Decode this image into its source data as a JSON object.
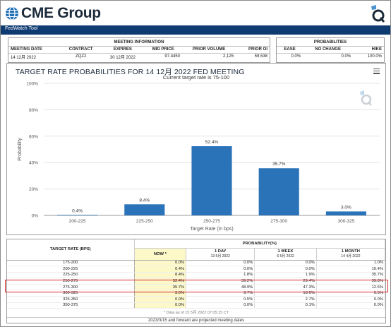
{
  "header": {
    "brand_name": "CME Group",
    "tool_title": "FedWatch Tool",
    "badge_icon": "q-logo-icon"
  },
  "meeting_info": {
    "caption": "MEETING INFORMATION",
    "columns": [
      "MEETING DATE",
      "CONTRACT",
      "EXPIRES",
      "MID PRICE",
      "PRIOR VOLUME",
      "PRIOR OI"
    ],
    "row": [
      "14 12月 2022",
      "ZQZ2",
      "30 12月 2022",
      "97.4450",
      "2,125",
      "59,538"
    ]
  },
  "probabilities_summary": {
    "caption": "PROBABILITIES",
    "columns": [
      "EASE",
      "NO CHANGE",
      "HIKE"
    ],
    "row": [
      "0.0%",
      "0.0%",
      "100.0%"
    ]
  },
  "chart": {
    "title": "TARGET RATE PROBABILITIES FOR 14 12月 2022 FED MEETING",
    "subtitle": "Current target rate is 75-100",
    "menu_icon": "hamburger-menu-icon"
  },
  "chart_data": {
    "type": "bar",
    "title": "TARGET RATE PROBABILITIES FOR 14 12月 2022 FED MEETING",
    "subtitle": "Current target rate is 75-100",
    "categories": [
      "200-225",
      "225-250",
      "250-275",
      "275-300",
      "300-325"
    ],
    "values": [
      0.4,
      8.4,
      52.4,
      35.7,
      3.0
    ],
    "data_labels": [
      "0.4%",
      "8.4%",
      "52.4%",
      "35.7%",
      "3.0%"
    ],
    "xlabel": "Target Rate (in bps)",
    "ylabel": "Probability",
    "ylim": [
      0,
      100
    ],
    "yticks": [
      "0%",
      "20%",
      "40%",
      "60%",
      "80%",
      "100%"
    ],
    "grid": true,
    "bar_color": "#2b73b9"
  },
  "prob_table": {
    "rate_header": "TARGET RATE (BPS)",
    "group_header": "PROBABILITY(%)",
    "columns": [
      {
        "label": "NOW *",
        "sub": ""
      },
      {
        "label": "1 DAY",
        "sub": "13 5月 2022"
      },
      {
        "label": "1 WEEK",
        "sub": "6 5月 2022"
      },
      {
        "label": "1 MONTH",
        "sub": "14 4月 2022"
      }
    ],
    "rows": [
      {
        "rate": "175-200",
        "now": "0.0%",
        "day": "0.0%",
        "week": "0.0%",
        "month": "1.0%"
      },
      {
        "rate": "200-225",
        "now": "0.4%",
        "day": "0.0%",
        "week": "0.0%",
        "month": "10.4%"
      },
      {
        "rate": "225-250",
        "now": "8.4%",
        "day": "1.8%",
        "week": "1.9%",
        "month": "35.7%"
      },
      {
        "rate": "250-275",
        "now": "52.4%",
        "day": "39.2%",
        "week": "29.4%",
        "month": "39.8%"
      },
      {
        "rate": "275-300",
        "now": "35.7%",
        "day": "48.9%",
        "week": "47.3%",
        "month": "12.5%"
      },
      {
        "rate": "300-325",
        "now": "3.0%",
        "day": "9.7%",
        "week": "18.6%",
        "month": "0.5%"
      },
      {
        "rate": "325-350",
        "now": "0.0%",
        "day": "0.5%",
        "week": "2.7%",
        "month": "0.0%"
      },
      {
        "rate": "350-375",
        "now": "0.0%",
        "day": "0.0%",
        "week": "0.1%",
        "month": "0.0%"
      }
    ],
    "footnote": "* Data as of 15 5月 2022 07:05:15 CT",
    "footer": "2023/3/15 and forward are projected meeting dates",
    "highlight_color": "#d62a2a"
  }
}
